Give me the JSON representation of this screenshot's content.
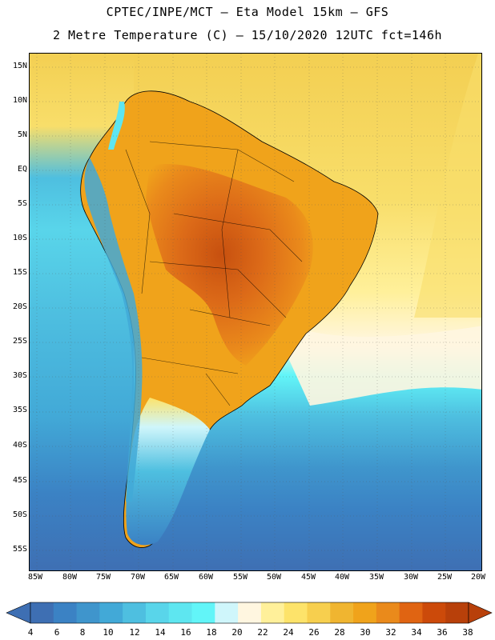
{
  "header": {
    "line1": "CPTEC/INPE/MCT –  Eta Model 15km – GFS",
    "line2": "2 Metre Temperature (C) – 15/10/2020 12UTC fct=146h"
  },
  "map": {
    "lat_labels": [
      "15N",
      "10N",
      "5N",
      "EQ",
      "5S",
      "10S",
      "15S",
      "20S",
      "25S",
      "30S",
      "35S",
      "40S",
      "45S",
      "50S",
      "55S"
    ],
    "lon_labels": [
      "85W",
      "80W",
      "75W",
      "70W",
      "65W",
      "60W",
      "55W",
      "50W",
      "45W",
      "40W",
      "35W",
      "30W",
      "25W",
      "20W"
    ]
  },
  "colorbar": {
    "labels": [
      "4",
      "6",
      "8",
      "10",
      "12",
      "14",
      "16",
      "18",
      "20",
      "22",
      "24",
      "26",
      "28",
      "30",
      "32",
      "34",
      "36",
      "38"
    ],
    "colors": [
      "#3e6fb3",
      "#3b82c4",
      "#3f95cc",
      "#42a9d7",
      "#4ebfe0",
      "#59d5ea",
      "#5ee6f0",
      "#62f5f8",
      "#cff6fb",
      "#fff6e0",
      "#fff09a",
      "#fde36a",
      "#f7cf4e",
      "#f0b530",
      "#f0a31b",
      "#ea8a1b",
      "#e06412",
      "#cc4a0a",
      "#b8400a"
    ]
  }
}
